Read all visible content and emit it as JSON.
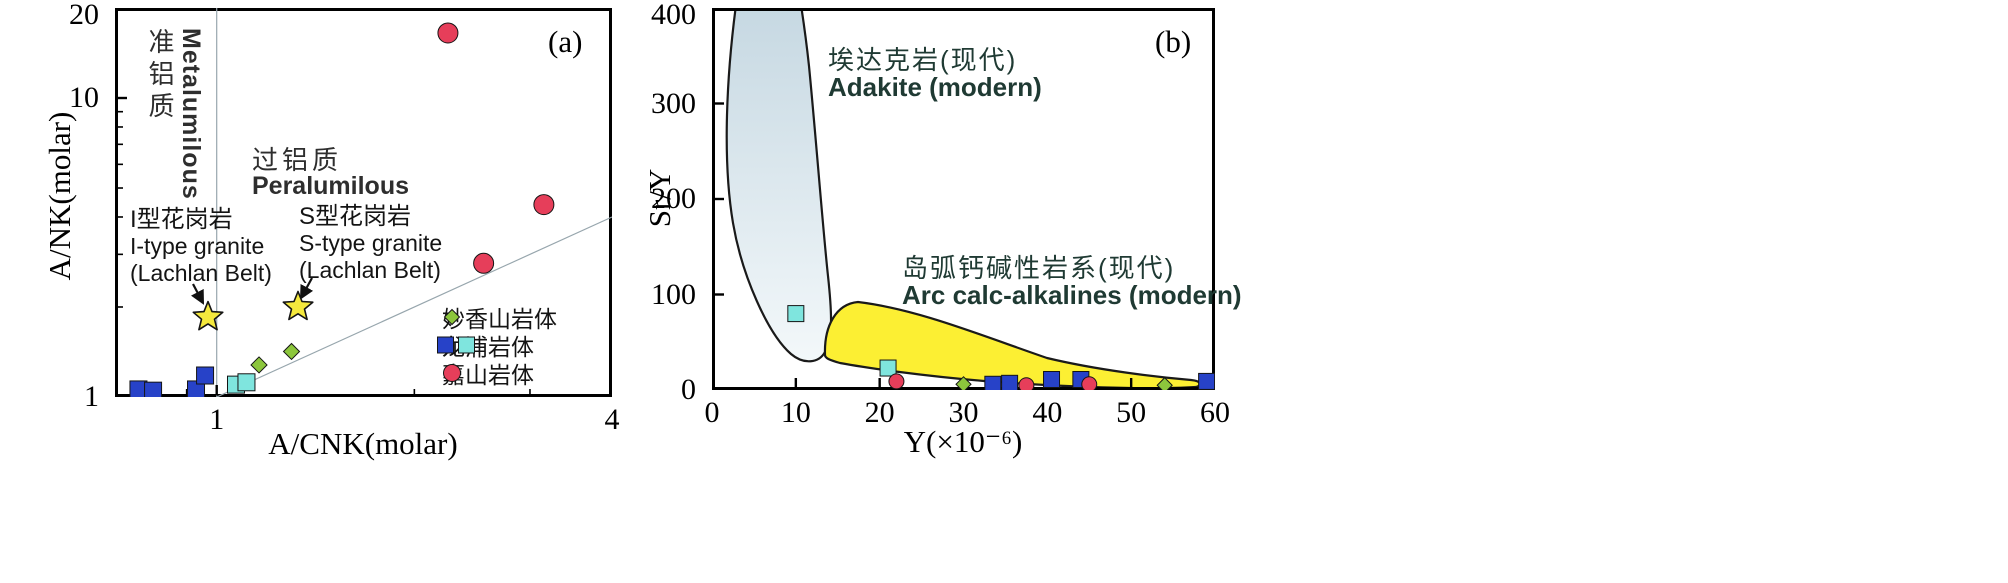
{
  "figure": {
    "background": "#ffffff"
  },
  "chart_data": [
    {
      "type": "scatter",
      "panel": "a",
      "tag": "(a)",
      "xlabel": "A/CNK(molar)",
      "ylabel": "A/NK(molar)",
      "x_scale": "log",
      "y_scale": "log",
      "x_range": [
        0.7,
        4
      ],
      "y_range": [
        1,
        20
      ],
      "grid": false,
      "x_ticks": [
        {
          "v": 1,
          "label": "1"
        },
        {
          "v": 4,
          "label": "4"
        }
      ],
      "x_minor_ticks": [
        0.8,
        0.9,
        2,
        3
      ],
      "y_ticks": [
        {
          "v": 1,
          "label": "1"
        },
        {
          "v": 10,
          "label": "10"
        },
        {
          "v": 20,
          "label": "20"
        }
      ],
      "y_minor_ticks": [
        2,
        3,
        4,
        5,
        6,
        7,
        8,
        9
      ],
      "reference_lines": [
        {
          "name": "metaluminous-peraluminous-divider",
          "type": "vertical",
          "x": 1,
          "color": "#97A6AD"
        },
        {
          "name": "one-to-one-line",
          "type": "segment",
          "from": [
            1,
            1
          ],
          "to": [
            4,
            4
          ],
          "color": "#97A6AD"
        }
      ],
      "region_labels": {
        "metaluminous_zh": "准铝质",
        "metaluminous_en": "Metalumilous",
        "peraluminous_zh": "过铝质",
        "peraluminous_en": "Peralumilous"
      },
      "granite_labels": {
        "i_zh": "I型花岗岩",
        "i_en": "I-type granite",
        "i_belt": "(Lachlan Belt)",
        "s_zh": "S型花岗岩",
        "s_en": "S-type granite",
        "s_belt": "(Lachlan Belt)"
      },
      "star_color": "#F5E93D",
      "stars": [
        {
          "x": 0.97,
          "y": 1.85
        },
        {
          "x": 1.33,
          "y": 2.0
        }
      ],
      "series": [
        {
          "name": "妙香山岩体",
          "marker": "diamond",
          "color": "#8CC63C",
          "points": [
            [
              1.16,
              1.28
            ],
            [
              1.3,
              1.42
            ]
          ]
        },
        {
          "name": "龙浦岩体",
          "marker": "square",
          "color": "#2742C8",
          "points": [
            [
              0.76,
              1.06
            ],
            [
              0.8,
              1.05
            ],
            [
              0.93,
              1.06
            ],
            [
              0.96,
              1.18
            ]
          ]
        },
        {
          "name": "龙浦岩体",
          "marker": "square",
          "color": "#7FE5DE",
          "points": [
            [
              1.07,
              1.1
            ],
            [
              1.11,
              1.12
            ]
          ]
        },
        {
          "name": "嘉山岩体",
          "marker": "circle",
          "color": "#E63E5A",
          "points": [
            [
              2.25,
              16.5
            ],
            [
              2.55,
              2.8
            ],
            [
              3.15,
              4.4
            ]
          ]
        }
      ],
      "legend": [
        {
          "label": "妙香山岩体",
          "markers": [
            {
              "shape": "diamond",
              "color": "#8CC63C"
            }
          ]
        },
        {
          "label": "龙浦岩体",
          "markers": [
            {
              "shape": "square",
              "color": "#2742C8"
            },
            {
              "shape": "square",
              "color": "#7FE5DE"
            }
          ]
        },
        {
          "label": "嘉山岩体",
          "markers": [
            {
              "shape": "circle",
              "color": "#E63E5A"
            }
          ]
        }
      ]
    },
    {
      "type": "scatter",
      "panel": "b",
      "tag": "(b)",
      "xlabel": "Y(×10⁻⁶)",
      "ylabel": "Sr/Y",
      "x_scale": "linear",
      "y_scale": "linear",
      "x_range": [
        0,
        60
      ],
      "y_range": [
        0,
        400
      ],
      "grid": false,
      "x_ticks": [
        {
          "v": 0,
          "label": "0"
        },
        {
          "v": 10,
          "label": "10"
        },
        {
          "v": 20,
          "label": "20"
        },
        {
          "v": 30,
          "label": "30"
        },
        {
          "v": 40,
          "label": "40"
        },
        {
          "v": 50,
          "label": "50"
        },
        {
          "v": 60,
          "label": "60"
        }
      ],
      "x_minor_ticks": [],
      "y_ticks": [
        {
          "v": 0,
          "label": "0"
        },
        {
          "v": 100,
          "label": "100"
        },
        {
          "v": 200,
          "label": "200"
        },
        {
          "v": 300,
          "label": "300"
        },
        {
          "v": 400,
          "label": "400"
        }
      ],
      "y_minor_ticks": [],
      "fields": {
        "adakite": {
          "zh": "埃达克岩(现代)",
          "en": "Adakite (modern)",
          "fill_top": "#C6D8E2",
          "fill_bottom": "#F3F8FA"
        },
        "arc": {
          "zh": "岛弧钙碱性岩系(现代)",
          "en": "Arc calc-alkalines (modern)",
          "fill": "#FCEF33"
        }
      },
      "series": [
        {
          "name": "龙浦岩体",
          "marker": "square",
          "color": "#7FE5DE",
          "points": [
            [
              10,
              80
            ],
            [
              21,
              23
            ]
          ]
        },
        {
          "name": "龙浦岩体",
          "marker": "square",
          "color": "#2742C8",
          "points": [
            [
              33.5,
              6
            ],
            [
              35.5,
              7
            ],
            [
              40.5,
              11
            ],
            [
              44,
              11
            ],
            [
              59,
              9
            ]
          ]
        },
        {
          "name": "嘉山岩体",
          "marker": "circle",
          "color": "#E63E5A",
          "points": [
            [
              22,
              9
            ],
            [
              37.5,
              5
            ],
            [
              45,
              6
            ]
          ]
        },
        {
          "name": "妙香山岩体",
          "marker": "diamond",
          "color": "#8CC63C",
          "points": [
            [
              30,
              6
            ],
            [
              54,
              5
            ]
          ]
        }
      ]
    }
  ]
}
